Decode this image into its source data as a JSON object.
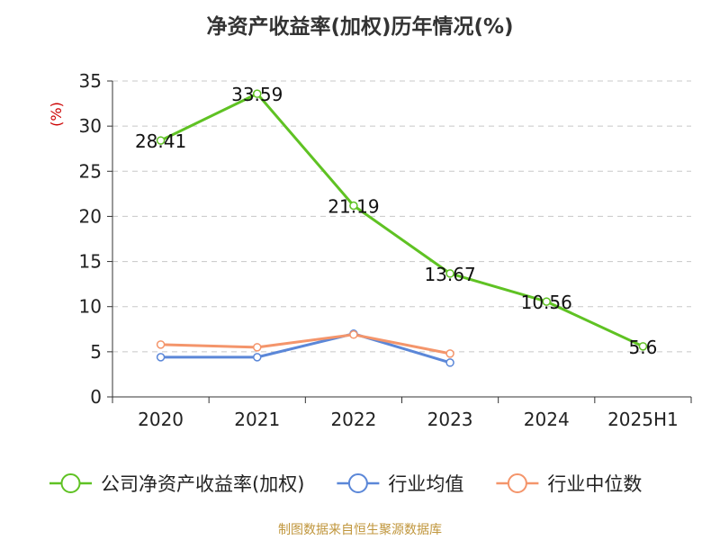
{
  "chart_data": {
    "type": "line",
    "title": "净资产收益率(加权)历年情况(%)",
    "ylabel": "(%)",
    "categories": [
      "2020",
      "2021",
      "2022",
      "2023",
      "2024",
      "2025H1"
    ],
    "ylim": [
      0,
      35
    ],
    "yticks": [
      0,
      5,
      10,
      15,
      20,
      25,
      30,
      35
    ],
    "grid": true,
    "legend_position": "bottom",
    "series": [
      {
        "name": "公司净资产收益率(加权)",
        "color": "#5fc223",
        "values": [
          28.41,
          33.59,
          21.19,
          13.67,
          10.56,
          5.6
        ],
        "labels": [
          "28.41",
          "33.59",
          "21.19",
          "13.67",
          "10.56",
          "5.6"
        ]
      },
      {
        "name": "行业均值",
        "color": "#5b87d8",
        "values": [
          4.4,
          4.4,
          7.0,
          3.8,
          null,
          null
        ]
      },
      {
        "name": "行业中位数",
        "color": "#f4956b",
        "values": [
          5.8,
          5.5,
          6.9,
          4.8,
          null,
          null
        ]
      }
    ]
  },
  "source": "制图数据来自恒生聚源数据库"
}
